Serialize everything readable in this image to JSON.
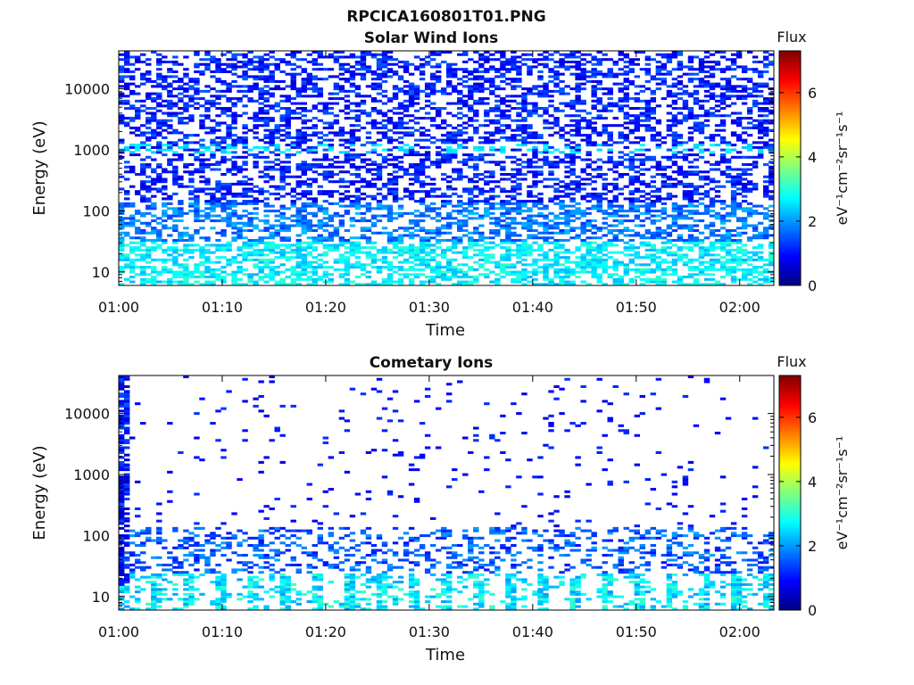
{
  "figure_title": "RPCICA160801T01.PNG",
  "colormap": [
    "#00007f",
    "#0000ff",
    "#007fff",
    "#00ffff",
    "#7fff7f",
    "#ffff00",
    "#ff7f00",
    "#ff0000",
    "#7f0000"
  ],
  "chart_data": [
    {
      "type": "heatmap",
      "title": "Solar Wind Ions",
      "xlabel": "Time",
      "ylabel": "Energy (eV)",
      "x_ticks": [
        "01:00",
        "01:10",
        "01:20",
        "01:30",
        "01:40",
        "01:50",
        "02:00"
      ],
      "x_tick_minutes": [
        0,
        10,
        20,
        30,
        40,
        50,
        60
      ],
      "xlim_minutes": [
        0,
        63.3
      ],
      "y_ticks": [
        "10",
        "100",
        "1000",
        "10000"
      ],
      "y_tick_values": [
        10,
        100,
        1000,
        10000
      ],
      "yscale": "log",
      "ylim": [
        6,
        42000
      ],
      "colorbar": {
        "label": "Flux",
        "unit": "eV⁻¹cm⁻²sr⁻¹s⁻¹",
        "ticks": [
          "0",
          "2",
          "4",
          "6"
        ],
        "tick_values": [
          0,
          2,
          4,
          6
        ],
        "range": [
          0,
          7.3
        ]
      },
      "bins": {
        "time_bins": 122,
        "energy_bins": 96
      },
      "profile": "solar_wind"
    },
    {
      "type": "heatmap",
      "title": "Cometary Ions",
      "xlabel": "Time",
      "ylabel": "Energy (eV)",
      "x_ticks": [
        "01:00",
        "01:10",
        "01:20",
        "01:30",
        "01:40",
        "01:50",
        "02:00"
      ],
      "x_tick_minutes": [
        0,
        10,
        20,
        30,
        40,
        50,
        60
      ],
      "xlim_minutes": [
        0,
        63.3
      ],
      "y_ticks": [
        "10",
        "100",
        "1000",
        "10000"
      ],
      "y_tick_values": [
        10,
        100,
        1000,
        10000
      ],
      "yscale": "log",
      "ylim": [
        6,
        42000
      ],
      "colorbar": {
        "label": "Flux",
        "unit": "eV⁻¹cm⁻²sr⁻¹s⁻¹",
        "ticks": [
          "0",
          "2",
          "4",
          "6"
        ],
        "tick_values": [
          0,
          2,
          4,
          6
        ],
        "range": [
          0,
          7.3
        ]
      },
      "bins": {
        "time_bins": 122,
        "energy_bins": 96
      },
      "profile": "cometary"
    }
  ]
}
